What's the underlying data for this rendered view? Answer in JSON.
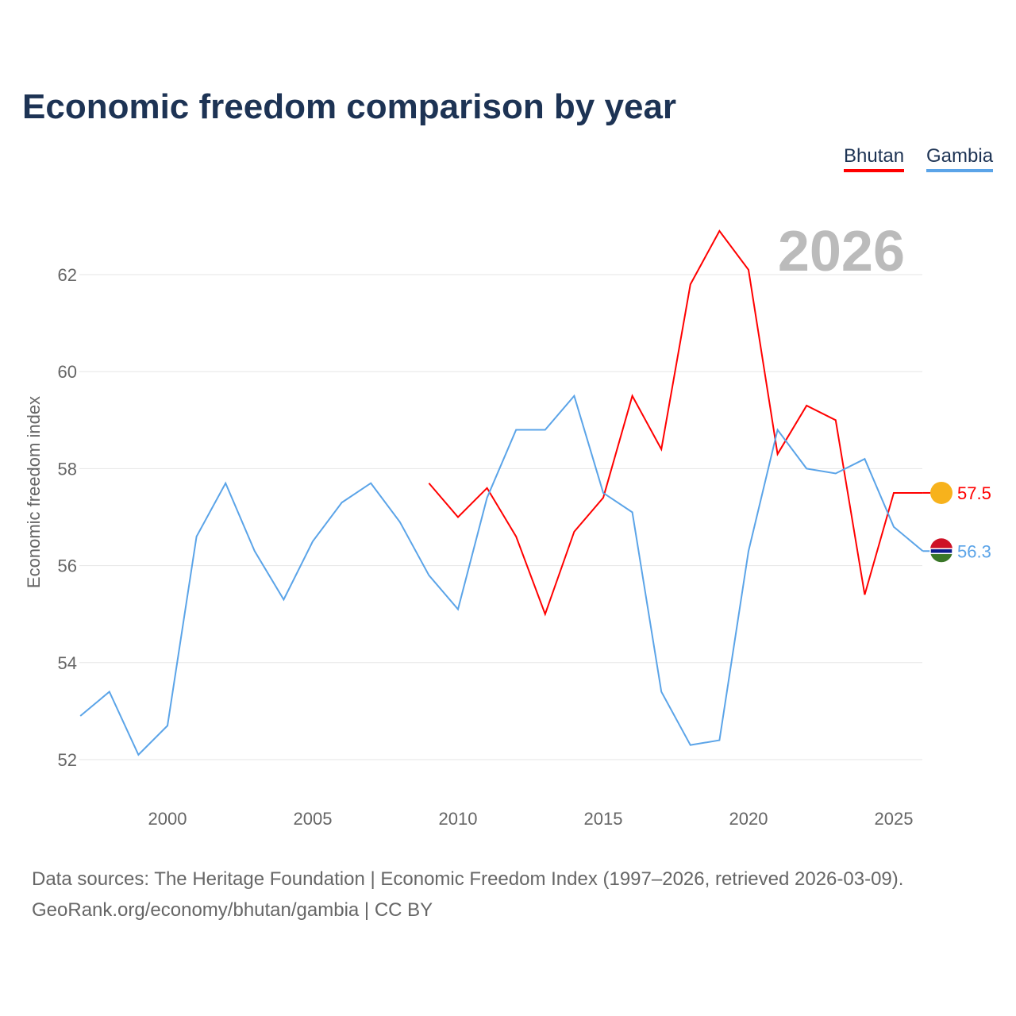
{
  "title": "Economic freedom comparison by year",
  "footer": {
    "line1": "Data sources: The Heritage Foundation | Economic Freedom Index (1997–2026, retrieved 2026-03-09).",
    "line2": "GeoRank.org/economy/bhutan/gambia | CC BY"
  },
  "chart_data": {
    "type": "line",
    "title": "Economic freedom comparison by year",
    "ylabel": "Economic freedom index",
    "xlabel": "",
    "year_label": "2026",
    "xlim": [
      1997,
      2026
    ],
    "ylim": [
      51.2,
      63.5
    ],
    "xticks": [
      2000,
      2005,
      2010,
      2015,
      2020,
      2025
    ],
    "yticks": [
      52,
      54,
      56,
      58,
      60,
      62
    ],
    "grid": true,
    "legend": "top-right",
    "series": [
      {
        "name": "Bhutan",
        "color": "#ff0000",
        "end_label": "57.5",
        "x": [
          2009,
          2010,
          2011,
          2012,
          2013,
          2014,
          2015,
          2016,
          2017,
          2018,
          2019,
          2020,
          2021,
          2022,
          2023,
          2024,
          2025,
          2026
        ],
        "values": [
          57.7,
          57.0,
          57.6,
          56.6,
          55.0,
          56.7,
          57.4,
          59.5,
          58.4,
          61.8,
          62.9,
          62.1,
          58.3,
          59.3,
          59.0,
          55.4,
          57.5,
          57.5
        ]
      },
      {
        "name": "Gambia",
        "color": "#5ba4e8",
        "end_label": "56.3",
        "x": [
          1997,
          1998,
          1999,
          2000,
          2001,
          2002,
          2003,
          2004,
          2005,
          2006,
          2007,
          2008,
          2009,
          2010,
          2011,
          2012,
          2013,
          2014,
          2015,
          2016,
          2017,
          2018,
          2019,
          2020,
          2021,
          2022,
          2023,
          2024,
          2025,
          2026
        ],
        "values": [
          52.9,
          53.4,
          52.1,
          52.7,
          56.6,
          57.7,
          56.3,
          55.3,
          56.5,
          57.3,
          57.7,
          56.9,
          55.8,
          55.1,
          57.4,
          58.8,
          58.8,
          59.5,
          57.5,
          57.1,
          53.4,
          52.3,
          52.4,
          56.3,
          58.8,
          58.0,
          57.9,
          58.2,
          56.8,
          56.3
        ]
      }
    ]
  }
}
